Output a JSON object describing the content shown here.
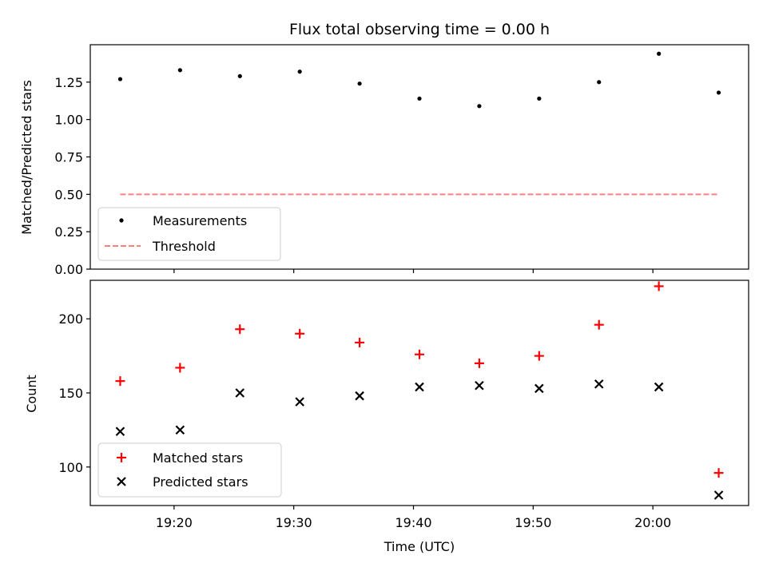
{
  "chart_data": [
    {
      "type": "scatter",
      "title": "Flux total observing time = 0.00 h",
      "xlabel": "",
      "ylabel": "Matched/Predicted stars",
      "x": [
        "19:15:30",
        "19:20:30",
        "19:25:30",
        "19:30:30",
        "19:35:30",
        "19:40:30",
        "19:45:30",
        "19:50:30",
        "19:55:30",
        "20:00:30",
        "20:05:30"
      ],
      "xlim": [
        "19:13:00",
        "20:08:00"
      ],
      "ylim": [
        0,
        1.5
      ],
      "yticks": [
        "0.00",
        "0.25",
        "0.50",
        "0.75",
        "1.00",
        "1.25"
      ],
      "series": [
        {
          "name": "Measurements",
          "marker": "dot",
          "color": "#000000",
          "values": [
            1.27,
            1.33,
            1.29,
            1.32,
            1.24,
            1.14,
            1.09,
            1.14,
            1.25,
            1.44,
            1.18
          ]
        },
        {
          "name": "Threshold",
          "marker": "dashed-line",
          "color": "#ff7f7f",
          "values": [
            0.5,
            0.5,
            0.5,
            0.5,
            0.5,
            0.5,
            0.5,
            0.5,
            0.5,
            0.5,
            0.5
          ]
        }
      ],
      "legend": "lower-left",
      "grid": false
    },
    {
      "type": "scatter",
      "title": "",
      "xlabel": "Time (UTC)",
      "ylabel": "Count",
      "x": [
        "19:15:30",
        "19:20:30",
        "19:25:30",
        "19:30:30",
        "19:35:30",
        "19:40:30",
        "19:45:30",
        "19:50:30",
        "19:55:30",
        "20:00:30",
        "20:05:30"
      ],
      "xlim": [
        "19:13:00",
        "20:08:00"
      ],
      "xticks": [
        "19:20",
        "19:30",
        "19:40",
        "19:50",
        "20:00"
      ],
      "ylim": [
        74,
        226
      ],
      "yticks": [
        "100",
        "150",
        "200"
      ],
      "series": [
        {
          "name": "Matched stars",
          "marker": "plus",
          "color": "#ff0000",
          "values": [
            158,
            167,
            193,
            190,
            184,
            176,
            170,
            175,
            196,
            222,
            96
          ]
        },
        {
          "name": "Predicted stars",
          "marker": "x",
          "color": "#000000",
          "values": [
            124,
            125,
            150,
            144,
            148,
            154,
            155,
            153,
            156,
            154,
            81
          ]
        }
      ],
      "legend": "lower-left",
      "grid": false
    }
  ]
}
